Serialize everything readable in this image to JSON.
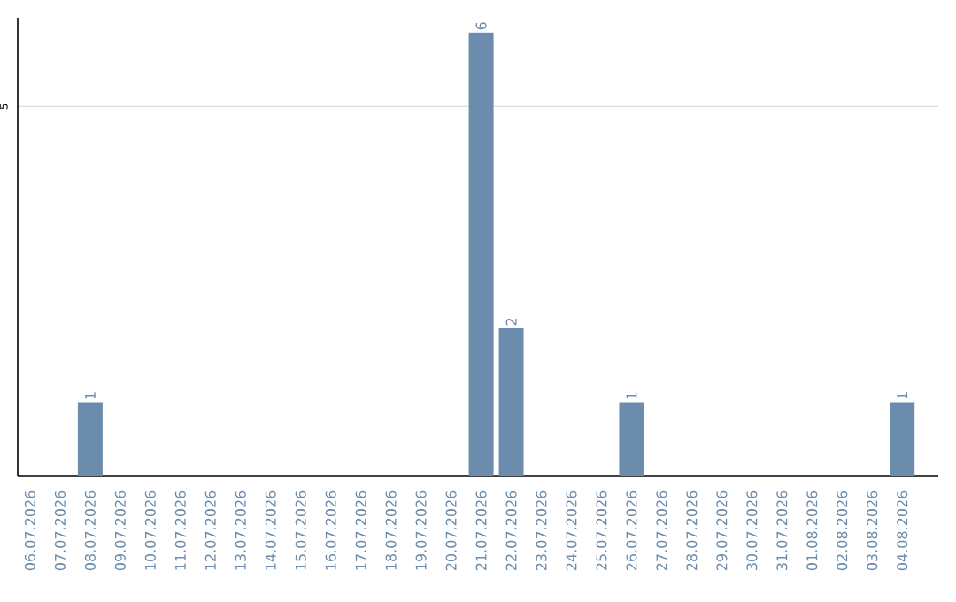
{
  "chart_data": {
    "type": "bar",
    "categories": [
      "06.07.2026",
      "07.07.2026",
      "08.07.2026",
      "09.07.2026",
      "10.07.2026",
      "11.07.2026",
      "12.07.2026",
      "13.07.2026",
      "14.07.2026",
      "15.07.2026",
      "16.07.2026",
      "17.07.2026",
      "18.07.2026",
      "19.07.2026",
      "20.07.2026",
      "21.07.2026",
      "22.07.2026",
      "23.07.2026",
      "24.07.2026",
      "25.07.2026",
      "26.07.2026",
      "27.07.2026",
      "28.07.2026",
      "29.07.2026",
      "30.07.2026",
      "31.07.2026",
      "01.08.2026",
      "02.08.2026",
      "03.08.2026",
      "04.08.2026"
    ],
    "values": [
      0,
      0,
      1,
      0,
      0,
      0,
      0,
      0,
      0,
      0,
      0,
      0,
      0,
      0,
      0,
      6,
      2,
      0,
      0,
      0,
      1,
      0,
      0,
      0,
      0,
      0,
      0,
      0,
      0,
      1
    ],
    "value_labels": [
      null,
      null,
      "1",
      null,
      null,
      null,
      null,
      null,
      null,
      null,
      null,
      null,
      null,
      null,
      null,
      "6",
      "2",
      null,
      null,
      null,
      "1",
      null,
      null,
      null,
      null,
      null,
      null,
      null,
      null,
      "1"
    ],
    "color": "#6b8cac",
    "ylim": [
      0,
      6.2
    ],
    "yticks": [
      5
    ],
    "grid": "y"
  }
}
